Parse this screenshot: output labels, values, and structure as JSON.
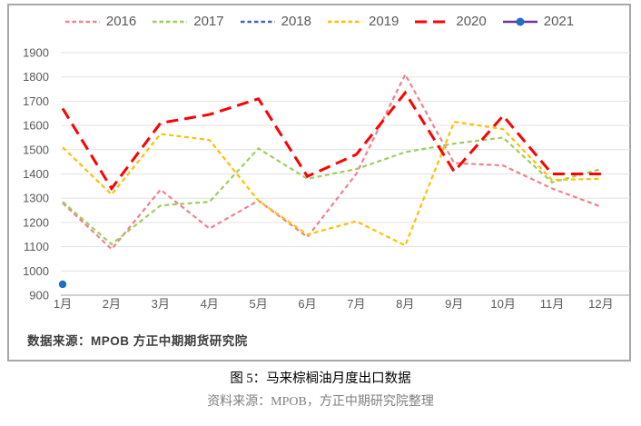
{
  "chart": {
    "source_note": "数据来源：MPOB  方正中期期货研究院"
  },
  "chart_data": {
    "type": "line",
    "title": "",
    "xlabel": "",
    "ylabel": "",
    "categories": [
      "1月",
      "2月",
      "3月",
      "4月",
      "5月",
      "6月",
      "7月",
      "8月",
      "9月",
      "10月",
      "11月",
      "12月"
    ],
    "series": [
      {
        "name": "2016",
        "color": "#f3808a",
        "dash": "short",
        "values": [
          1280,
          1090,
          1335,
          1175,
          1290,
          1140,
          1400,
          1810,
          1445,
          1435,
          1340,
          1265
        ]
      },
      {
        "name": "2017",
        "color": "#9cce5f",
        "dash": "short",
        "values": [
          1285,
          1110,
          1270,
          1285,
          1505,
          1380,
          1420,
          1490,
          1525,
          1550,
          1365,
          1420
        ]
      },
      {
        "name": "2018",
        "color": "#3e64c4",
        "dash": "short",
        "values": [],
        "visible_in_plot": false
      },
      {
        "name": "2019",
        "color": "#ffc000",
        "dash": "short",
        "values": [
          1510,
          1315,
          1565,
          1540,
          1290,
          1150,
          1205,
          1105,
          1615,
          1585,
          1375,
          1380
        ]
      },
      {
        "name": "2020",
        "color": "#ff0000",
        "dash": "long",
        "values": [
          1670,
          1340,
          1610,
          1645,
          1710,
          1390,
          1480,
          1735,
          1410,
          1640,
          1400,
          1400
        ]
      },
      {
        "name": "2021",
        "color": "#7030a0",
        "dash": "solid",
        "marker": "circle",
        "marker_color": "#1f70c0",
        "values": [
          945,
          null,
          null,
          null,
          null,
          null,
          null,
          null,
          null,
          null,
          null,
          null
        ]
      }
    ],
    "ylim": [
      900,
      1900
    ],
    "yticks": [
      900,
      1000,
      1100,
      1200,
      1300,
      1400,
      1500,
      1600,
      1700,
      1800,
      1900
    ],
    "grid": true,
    "legend_position": "top",
    "axis_label_color": "#595959",
    "gridline_color": "#e2e2e2",
    "baseline_color": "#b3b3b3"
  },
  "caption": {
    "title": "图 5：马来棕榈油月度出口数据",
    "source": "资料来源：MPOB，方正中期研究院整理"
  }
}
